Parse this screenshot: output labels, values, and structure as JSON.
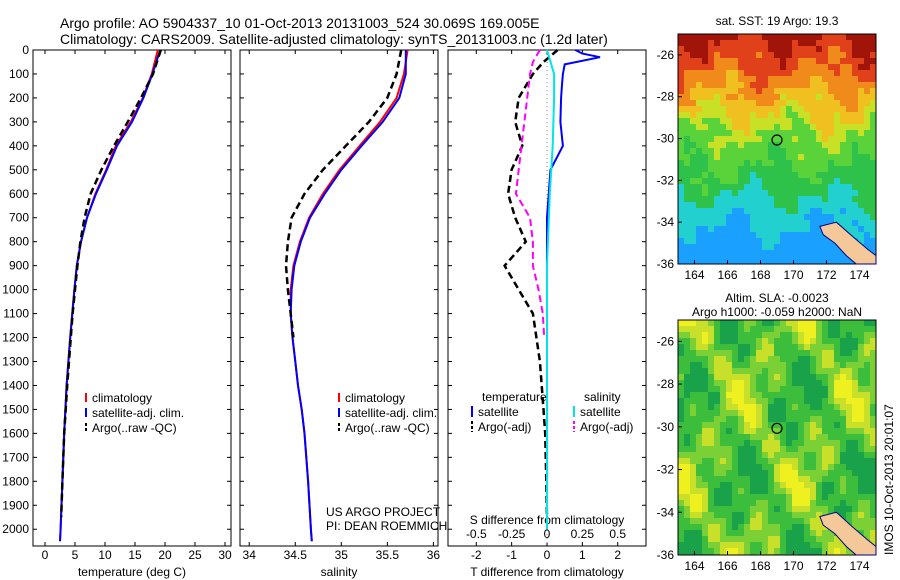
{
  "header": {
    "line1": "Argo profile: AO 5904337_10 01-Oct-2013 20131003_524 30.069S 169.005E",
    "line2": "Climatology: CARS2009. Satellite-adjusted climatology: synTS_20131003.nc (1.2d later)"
  },
  "colors": {
    "climatology": "#ff0000",
    "satellite": "#0000ff",
    "argo": "#000000",
    "salinity_satellite": "#00e5e5",
    "salinity_argo": "#ff00ff"
  },
  "chart_data": [
    {
      "type": "line",
      "xlabel": "temperature (deg C)",
      "ylabel": "",
      "xlim": [
        -2,
        31
      ],
      "ylim": [
        2070,
        0
      ],
      "xticks": [
        0,
        5,
        10,
        15,
        20,
        25,
        30
      ],
      "yticks": [
        0,
        100,
        200,
        300,
        400,
        500,
        600,
        700,
        800,
        900,
        1000,
        1100,
        1200,
        1300,
        1400,
        1500,
        1600,
        1700,
        1800,
        1900,
        2000
      ],
      "legend": [
        "climatology",
        "satellite-adj. clim.",
        "Argo(..raw -QC)"
      ],
      "series": [
        {
          "name": "climatology",
          "depth": [
            0,
            100,
            200,
            300,
            400,
            500,
            600,
            700,
            800,
            900,
            1000,
            1200,
            1400,
            1600,
            1800,
            2000,
            2050
          ],
          "values": [
            18.8,
            17.8,
            16.3,
            14.3,
            11.8,
            10.2,
            8.4,
            7.0,
            6.0,
            5.3,
            4.9,
            4.2,
            3.6,
            3.2,
            2.9,
            2.6,
            2.5
          ]
        },
        {
          "name": "satellite-adj. clim.",
          "depth": [
            0,
            100,
            200,
            300,
            400,
            500,
            600,
            700,
            800,
            900,
            1000,
            1200,
            1400,
            1600,
            1800,
            2000,
            2050
          ],
          "values": [
            19.2,
            17.9,
            16.4,
            14.5,
            12.0,
            10.3,
            8.5,
            7.0,
            6.0,
            5.3,
            4.9,
            4.2,
            3.6,
            3.2,
            2.9,
            2.6,
            2.5
          ]
        },
        {
          "name": "Argo(..raw -QC)",
          "depth": [
            0,
            100,
            200,
            300,
            400,
            500,
            600,
            700,
            800,
            900,
            1000,
            1100,
            1200,
            1400,
            1600,
            1800,
            1950
          ],
          "values": [
            19.3,
            18.0,
            16.0,
            13.8,
            11.5,
            9.4,
            7.6,
            6.6,
            5.9,
            5.4,
            5.0,
            4.6,
            4.3,
            3.7,
            3.2,
            2.9,
            2.7
          ]
        }
      ]
    },
    {
      "type": "line",
      "xlabel": "salinity",
      "xlim": [
        33.9,
        36.05
      ],
      "ylim": [
        2070,
        0
      ],
      "xticks": [
        34,
        34.5,
        35,
        35.5,
        36
      ],
      "legend": [
        "climatology",
        "satellite-adj. clim.",
        "Argo(..raw -QC)"
      ],
      "annotation": [
        "US ARGO PROJECT",
        "PI: DEAN ROEMMICH"
      ],
      "series": [
        {
          "name": "climatology",
          "depth": [
            0,
            100,
            200,
            300,
            400,
            500,
            600,
            700,
            800,
            900,
            1000,
            1100,
            1200,
            1300,
            1400,
            1500,
            1600,
            1800,
            2000,
            2050
          ],
          "values": [
            35.72,
            35.68,
            35.6,
            35.42,
            35.2,
            34.98,
            34.8,
            34.65,
            34.55,
            34.48,
            34.45,
            34.45,
            34.47,
            34.5,
            34.53,
            34.57,
            34.6,
            34.64,
            34.67,
            34.68
          ]
        },
        {
          "name": "satellite-adj. clim.",
          "depth": [
            0,
            100,
            200,
            300,
            400,
            500,
            600,
            700,
            800,
            900,
            1000,
            1100,
            1200,
            1300,
            1400,
            1500,
            1600,
            1800,
            2000,
            2050
          ],
          "values": [
            35.7,
            35.7,
            35.63,
            35.45,
            35.22,
            35.0,
            34.82,
            34.66,
            34.56,
            34.49,
            34.46,
            34.45,
            34.47,
            34.5,
            34.53,
            34.57,
            34.6,
            34.64,
            34.67,
            34.68
          ]
        },
        {
          "name": "Argo(..raw -QC)",
          "depth": [
            0,
            100,
            200,
            300,
            400,
            500,
            600,
            700,
            800,
            900,
            1000,
            1100,
            1200
          ],
          "values": [
            35.65,
            35.6,
            35.5,
            35.3,
            35.05,
            34.8,
            34.6,
            34.46,
            34.42,
            34.4,
            34.42,
            34.45,
            34.48
          ]
        }
      ]
    },
    {
      "type": "line",
      "title": "S difference from climatology",
      "xlabel": "T difference from climatology",
      "xlim": [
        -2.8,
        2.8
      ],
      "ylim": [
        2070,
        0
      ],
      "xticks": [
        -2,
        -1,
        0,
        1,
        2
      ],
      "secondary_xticks": [
        "-0.5",
        "-0.25",
        "0",
        "0.25",
        "0.5"
      ],
      "legend_temperature_title": "temperature",
      "legend_salinity_title": "salinity",
      "legend": [
        "satellite",
        "Argo(-adj)",
        "satellite",
        "Argo(-adj)"
      ],
      "series": [
        {
          "name": "temperature satellite",
          "depth": [
            0,
            15,
            30,
            60,
            100,
            150,
            200,
            300,
            400,
            500,
            700,
            900,
            1100,
            1300,
            1500,
            1700,
            2000
          ],
          "values": [
            0.8,
            1.0,
            1.5,
            0.5,
            0.45,
            0.42,
            0.4,
            0.38,
            0.45,
            0.1,
            0.0,
            0.0,
            0.0,
            0.0,
            0.0,
            0.0,
            0.0
          ]
        },
        {
          "name": "temperature Argo(-adj)",
          "depth": [
            0,
            50,
            100,
            200,
            300,
            400,
            500,
            600,
            700,
            800,
            900,
            1000,
            1100,
            1200,
            1300,
            1400,
            1500,
            1600,
            1800,
            1950
          ],
          "values": [
            0.3,
            -0.1,
            -0.4,
            -0.8,
            -0.9,
            -0.7,
            -1.0,
            -1.1,
            -0.9,
            -0.6,
            -1.2,
            -0.8,
            -0.4,
            -0.3,
            -0.2,
            -0.15,
            -0.1,
            -0.05,
            -0.02,
            0.0
          ]
        },
        {
          "name": "salinity satellite",
          "depth": [
            0,
            100,
            200,
            400,
            600,
            900,
            1200,
            1600,
            2000
          ],
          "values": [
            0.0,
            0.05,
            0.05,
            0.04,
            0.02,
            0.0,
            0.0,
            0.0,
            0.0
          ]
        },
        {
          "name": "salinity Argo(-adj)",
          "depth": [
            0,
            50,
            100,
            200,
            300,
            400,
            500,
            600,
            700,
            800,
            900,
            1000,
            1100,
            1200
          ],
          "values": [
            -0.05,
            -0.1,
            -0.12,
            -0.14,
            -0.16,
            -0.18,
            -0.2,
            -0.22,
            -0.12,
            -0.1,
            -0.1,
            -0.06,
            -0.03,
            -0.02
          ]
        }
      ]
    },
    {
      "type": "heatmap",
      "title": "sat. SST: 19 Argo: 19.3",
      "xlim": [
        163,
        175
      ],
      "ylim": [
        -36,
        -25
      ],
      "xticks": [
        164,
        166,
        168,
        170,
        172,
        174
      ],
      "yticks": [
        -26,
        -28,
        -30,
        -32,
        -34,
        -36
      ],
      "marker": {
        "x": 169.0,
        "y": -30.07
      }
    },
    {
      "type": "heatmap",
      "title": "Altim. SLA: -0.0023",
      "subtitle": "Argo h1000: -0.059 h2000: NaN",
      "xlim": [
        163,
        175
      ],
      "ylim": [
        -36,
        -25
      ],
      "xticks": [
        164,
        166,
        168,
        170,
        172,
        174
      ],
      "yticks": [
        -26,
        -28,
        -30,
        -32,
        -34,
        -36
      ],
      "marker": {
        "x": 169.0,
        "y": -30.07
      }
    }
  ],
  "side_text": "IMOS 10-Oct-2013 20:01:07"
}
